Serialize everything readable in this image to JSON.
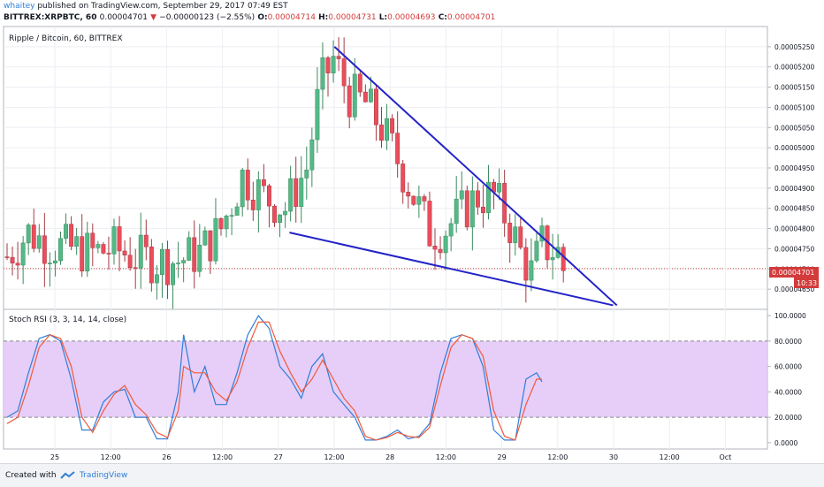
{
  "header": {
    "user": "whaitey",
    "published_text": " published on TradingView.com, September 29, 2017 07:49 EST",
    "symbol": "BITTREX:XRPBTC, 60",
    "last_value": "0.00004701",
    "change": "−0.00000123 (−2.55%)",
    "o_label": "O:",
    "o_val": "0.00004714",
    "h_label": "H:",
    "h_val": "0.00004731",
    "l_label": "L:",
    "l_val": "0.00004693",
    "c_label": "C:",
    "c_val": "0.00004701"
  },
  "footer": {
    "created": "Created with",
    "brand": "TradingView"
  },
  "chart_data": [
    {
      "type": "candlestick",
      "title": "Ripple / Bitcoin, 60, BITTREX",
      "ylim": [
        4.6e-05,
        5.3e-05
      ],
      "y_ticks": [
        "0.00004650",
        "0.00004700",
        "0.00004750",
        "0.00004800",
        "0.00004850",
        "0.00004900",
        "0.00004950",
        "0.00005000",
        "0.00005050",
        "0.00005100",
        "0.00005150",
        "0.00005200",
        "0.00005250"
      ],
      "last_price_label": "0.00004701",
      "countdown_label": "10:33",
      "x_labels": [
        "25",
        "12:00",
        "26",
        "12:00",
        "27",
        "12:00",
        "28",
        "12:00",
        "29",
        "12:00",
        "30",
        "12:00",
        "Oct"
      ],
      "key_levels": [
        {
          "x": 0.0,
          "y": 4.73e-05
        },
        {
          "x": 4.0,
          "y": 4.79e-05
        },
        {
          "x": 8.0,
          "y": 4.76e-05
        },
        {
          "x": 12.0,
          "y": 4.75e-05
        },
        {
          "x": 16.0,
          "y": 4.74e-05
        },
        {
          "x": 20.0,
          "y": 4.75e-05
        },
        {
          "x": 24.0,
          "y": 4.73e-05
        },
        {
          "x": 28.0,
          "y": 4.72e-05
        },
        {
          "x": 32.0,
          "y": 4.72e-05
        },
        {
          "x": 36.0,
          "y": 4.74e-05
        },
        {
          "x": 40.0,
          "y": 4.8e-05
        },
        {
          "x": 44.0,
          "y": 4.93e-05
        },
        {
          "x": 48.0,
          "y": 4.88e-05
        },
        {
          "x": 52.0,
          "y": 4.85e-05
        },
        {
          "x": 56.0,
          "y": 4.95e-05
        },
        {
          "x": 58.5,
          "y": 5.15e-05
        },
        {
          "x": 61.0,
          "y": 5.22e-05
        },
        {
          "x": 64.0,
          "y": 5.13e-05
        },
        {
          "x": 67.0,
          "y": 5.11e-05
        },
        {
          "x": 70.0,
          "y": 5.05e-05
        },
        {
          "x": 73.0,
          "y": 4.97e-05
        },
        {
          "x": 76.0,
          "y": 4.88e-05
        },
        {
          "x": 79.0,
          "y": 4.79e-05
        },
        {
          "x": 82.0,
          "y": 4.8e-05
        },
        {
          "x": 85.0,
          "y": 4.84e-05
        },
        {
          "x": 88.0,
          "y": 4.88e-05
        },
        {
          "x": 91.0,
          "y": 4.88e-05
        },
        {
          "x": 94.0,
          "y": 4.81e-05
        },
        {
          "x": 96.0,
          "y": 4.74e-05
        },
        {
          "x": 98.0,
          "y": 4.69e-05
        },
        {
          "x": 100.0,
          "y": 4.76e-05
        },
        {
          "x": 103.0,
          "y": 4.74e-05
        },
        {
          "x": 104.0,
          "y": 4.7e-05
        }
      ],
      "wedge_lines": [
        {
          "x1": 61.2,
          "y1": 5.25e-05,
          "x2": 114.0,
          "y2": 4.61e-05
        },
        {
          "x1": 52.8,
          "y1": 4.79e-05,
          "x2": 113.3,
          "y2": 4.61e-05
        }
      ]
    },
    {
      "type": "line",
      "title": "Stoch RSI (3, 3, 14, 14, close)",
      "ylim": [
        -5,
        105
      ],
      "y_ticks": [
        "0.0000",
        "20.0000",
        "40.0000",
        "60.0000",
        "80.0000",
        "100.0000"
      ],
      "band": [
        20,
        80
      ],
      "series": [
        {
          "color": "#2f7ed8",
          "points": [
            [
              0,
              20
            ],
            [
              2,
              25
            ],
            [
              4,
              55
            ],
            [
              6,
              82
            ],
            [
              8,
              85
            ],
            [
              10,
              80
            ],
            [
              12,
              50
            ],
            [
              14,
              10
            ],
            [
              16,
              10
            ],
            [
              18,
              32
            ],
            [
              20,
              40
            ],
            [
              22,
              42
            ],
            [
              24,
              20
            ],
            [
              26,
              20
            ],
            [
              28,
              3
            ],
            [
              30,
              3
            ],
            [
              32,
              40
            ],
            [
              33,
              85
            ],
            [
              35,
              40
            ],
            [
              37,
              60
            ],
            [
              39,
              30
            ],
            [
              41,
              30
            ],
            [
              43,
              55
            ],
            [
              45,
              85
            ],
            [
              47,
              100
            ],
            [
              49,
              90
            ],
            [
              51,
              60
            ],
            [
              53,
              50
            ],
            [
              55,
              35
            ],
            [
              57,
              60
            ],
            [
              59,
              70
            ],
            [
              61,
              40
            ],
            [
              63,
              30
            ],
            [
              65,
              20
            ],
            [
              67,
              2
            ],
            [
              69,
              2
            ],
            [
              71,
              5
            ],
            [
              73,
              10
            ],
            [
              75,
              3
            ],
            [
              77,
              5
            ],
            [
              79,
              15
            ],
            [
              81,
              55
            ],
            [
              83,
              82
            ],
            [
              85,
              85
            ],
            [
              87,
              82
            ],
            [
              89,
              60
            ],
            [
              91,
              10
            ],
            [
              93,
              2
            ],
            [
              95,
              2
            ],
            [
              97,
              50
            ],
            [
              99,
              55
            ],
            [
              100,
              48
            ]
          ]
        },
        {
          "color": "#f05a3a",
          "points": [
            [
              0,
              15
            ],
            [
              2,
              20
            ],
            [
              4,
              45
            ],
            [
              6,
              75
            ],
            [
              8,
              85
            ],
            [
              10,
              82
            ],
            [
              12,
              60
            ],
            [
              14,
              20
            ],
            [
              16,
              8
            ],
            [
              18,
              25
            ],
            [
              20,
              38
            ],
            [
              22,
              45
            ],
            [
              24,
              30
            ],
            [
              26,
              22
            ],
            [
              28,
              8
            ],
            [
              30,
              4
            ],
            [
              32,
              25
            ],
            [
              33,
              60
            ],
            [
              35,
              55
            ],
            [
              37,
              55
            ],
            [
              39,
              40
            ],
            [
              41,
              33
            ],
            [
              43,
              48
            ],
            [
              45,
              75
            ],
            [
              47,
              95
            ],
            [
              49,
              95
            ],
            [
              51,
              72
            ],
            [
              53,
              55
            ],
            [
              55,
              40
            ],
            [
              57,
              50
            ],
            [
              59,
              65
            ],
            [
              61,
              50
            ],
            [
              63,
              35
            ],
            [
              65,
              25
            ],
            [
              67,
              5
            ],
            [
              69,
              2
            ],
            [
              71,
              4
            ],
            [
              73,
              8
            ],
            [
              75,
              5
            ],
            [
              77,
              4
            ],
            [
              79,
              12
            ],
            [
              81,
              45
            ],
            [
              83,
              75
            ],
            [
              85,
              85
            ],
            [
              87,
              82
            ],
            [
              89,
              68
            ],
            [
              91,
              25
            ],
            [
              93,
              5
            ],
            [
              95,
              2
            ],
            [
              97,
              30
            ],
            [
              99,
              50
            ],
            [
              100,
              50
            ]
          ]
        }
      ]
    }
  ]
}
